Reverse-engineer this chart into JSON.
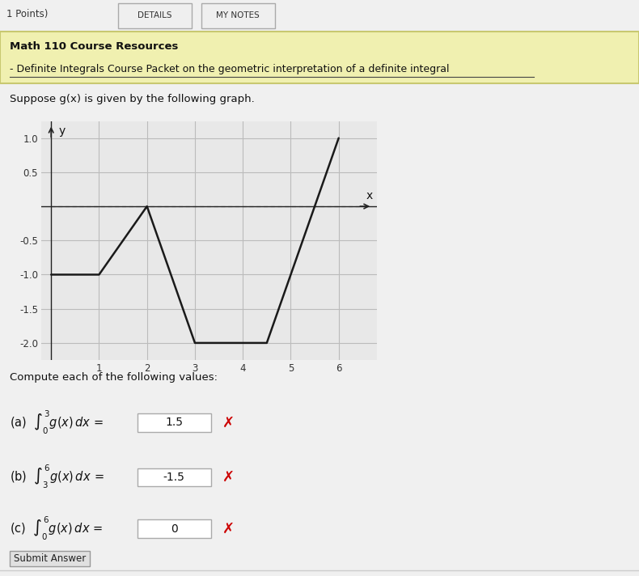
{
  "graph_x": [
    0,
    1,
    2,
    3,
    4.5,
    6
  ],
  "graph_y": [
    -1.0,
    -1.0,
    0.0,
    -2.0,
    -2.0,
    1.0
  ],
  "xlim": [
    -0.2,
    6.8
  ],
  "ylim": [
    -2.25,
    1.25
  ],
  "xticks": [
    1,
    2,
    3,
    4,
    5,
    6
  ],
  "yticks": [
    1.0,
    0.5,
    -0.5,
    -1.0,
    -1.5,
    -2.0
  ],
  "ytick_labels": [
    "1.0",
    "0.5",
    "-0.5",
    "-1.0",
    "-1.5",
    "-2.0"
  ],
  "xlabel": "x",
  "ylabel": "y",
  "line_color": "#1a1a1a",
  "line_width": 1.8,
  "grid_color": "#bbbbbb",
  "axis_color": "#222222",
  "page_bg": "#f0f0f0",
  "content_bg": "#f5f5f5",
  "graph_bg": "#e8e8e8",
  "header_bg": "#f0f0b0",
  "header_border": "#c8c870",
  "header_title": "Math 110 Course Resources",
  "header_subtitle": "- Definite Integrals Course Packet on the geometric interpretation of a definite integral",
  "problem_text": "Suppose g(x) is given by the following graph.",
  "compute_text": "Compute each of the following values:",
  "answer_a_value": "1.5",
  "answer_b_value": "-1.5",
  "answer_c_value": "0",
  "button_text": "Submit Answer",
  "top_bar_text": "1 Points)",
  "details_btn": "DETAILS",
  "notes_btn": "MY NOTES",
  "dashed_color": "#888888",
  "box_color": "#ffffff",
  "box_border": "#aaaaaa",
  "red_x_color": "#cc0000"
}
